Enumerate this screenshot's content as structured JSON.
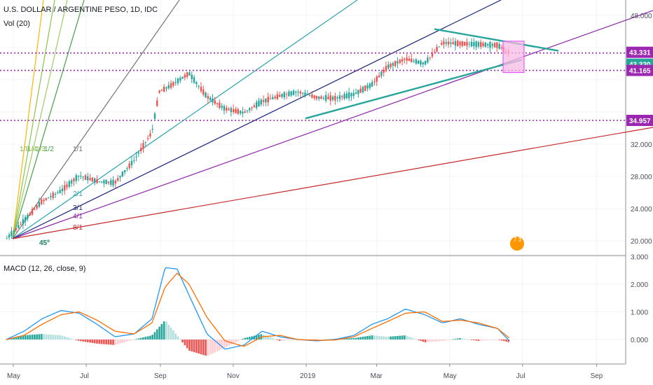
{
  "header": {
    "title": "U.S. DOLLAR / ARGENTINE PESO, 1D, IDC",
    "volume_label": "Vol (20)",
    "macd_label": "MACD (12, 26, close, 9)"
  },
  "price_axis": {
    "ticks": [
      "48.000",
      "32.000",
      "28.000",
      "24.000",
      "20.000"
    ],
    "badges": [
      {
        "value": "43.331",
        "color": "#9c27b0"
      },
      {
        "value": "43.330",
        "color": "#26a69a"
      },
      {
        "value": "41.165",
        "color": "#9c27b0"
      },
      {
        "value": "34.957",
        "color": "#9c27b0"
      }
    ]
  },
  "macd_axis": {
    "ticks": [
      "3.000",
      "2.000",
      "1.000",
      "0.000"
    ]
  },
  "time_axis": {
    "ticks": [
      "May",
      "Jul",
      "Sep",
      "Nov",
      "2019",
      "Mar",
      "May",
      "Jul",
      "Sep"
    ]
  },
  "gann_fan": {
    "labels": [
      "1/8",
      "1/4",
      "1/3",
      "1/2",
      "1/1",
      "2/1",
      "3/1",
      "4/1",
      "8/1"
    ],
    "angle_label": "45º"
  },
  "colors": {
    "up": "#26a69a",
    "down": "#ef5350",
    "macd": "#2196f3",
    "signal": "#ff6d00",
    "level": "#9c27b0",
    "trend": "#26a69a",
    "box": "#f48fd0"
  },
  "chart_data": [
    {
      "type": "line",
      "title": "U.S. DOLLAR / ARGENTINE PESO, 1D, IDC",
      "x": [
        "2018-04-25",
        "2018-05-10",
        "2018-05-25",
        "2018-06-10",
        "2018-06-25",
        "2018-07-10",
        "2018-07-25",
        "2018-08-10",
        "2018-08-25",
        "2018-08-31",
        "2018-09-10",
        "2018-09-25",
        "2018-10-10",
        "2018-10-25",
        "2018-11-10",
        "2018-11-25",
        "2018-12-10",
        "2018-12-25",
        "2019-01-10",
        "2019-01-25",
        "2019-02-10",
        "2019-02-25",
        "2019-03-10",
        "2019-03-25",
        "2019-04-10",
        "2019-04-25",
        "2019-05-10",
        "2019-05-25",
        "2019-06-10",
        "2019-06-20"
      ],
      "y": [
        20.2,
        22.5,
        24.9,
        26.2,
        28.1,
        27.4,
        27.2,
        30.0,
        33.5,
        38.5,
        39.3,
        40.8,
        37.9,
        36.4,
        35.9,
        37.3,
        38.0,
        38.5,
        37.8,
        37.7,
        38.2,
        39.4,
        41.6,
        42.6,
        42.0,
        44.6,
        44.5,
        44.4,
        44.3,
        43.33
      ],
      "ylim": [
        18.5,
        49.5
      ],
      "price_levels": [
        43.331,
        41.165,
        34.957
      ],
      "volume_label": "Vol (20)"
    },
    {
      "type": "line",
      "title": "MACD (12, 26, close, 9)",
      "x": [
        "2018-04-25",
        "2018-05-10",
        "2018-05-25",
        "2018-06-10",
        "2018-06-25",
        "2018-07-10",
        "2018-07-25",
        "2018-08-10",
        "2018-08-25",
        "2018-09-05",
        "2018-09-15",
        "2018-09-25",
        "2018-10-10",
        "2018-10-25",
        "2018-11-10",
        "2018-11-25",
        "2018-12-10",
        "2018-12-25",
        "2019-01-10",
        "2019-01-25",
        "2019-02-10",
        "2019-02-25",
        "2019-03-10",
        "2019-03-25",
        "2019-04-10",
        "2019-04-25",
        "2019-05-10",
        "2019-05-25",
        "2019-06-10",
        "2019-06-20"
      ],
      "series": [
        {
          "name": "MACD",
          "values": [
            0.0,
            0.3,
            0.75,
            1.05,
            0.95,
            0.55,
            0.1,
            0.2,
            0.75,
            2.6,
            2.55,
            1.6,
            0.2,
            -0.35,
            -0.2,
            0.3,
            0.1,
            0.0,
            -0.05,
            0.0,
            0.15,
            0.55,
            0.75,
            1.1,
            0.9,
            0.6,
            0.75,
            0.55,
            0.4,
            -0.05
          ]
        },
        {
          "name": "Signal",
          "values": [
            0.0,
            0.15,
            0.55,
            0.9,
            1.0,
            0.7,
            0.3,
            0.2,
            0.6,
            1.9,
            2.4,
            2.0,
            0.8,
            -0.05,
            -0.25,
            0.1,
            0.15,
            0.0,
            -0.03,
            -0.02,
            0.1,
            0.4,
            0.65,
            0.95,
            1.0,
            0.65,
            0.7,
            0.6,
            0.4,
            0.05
          ]
        }
      ],
      "ylim": [
        -0.9,
        3.0
      ]
    }
  ]
}
